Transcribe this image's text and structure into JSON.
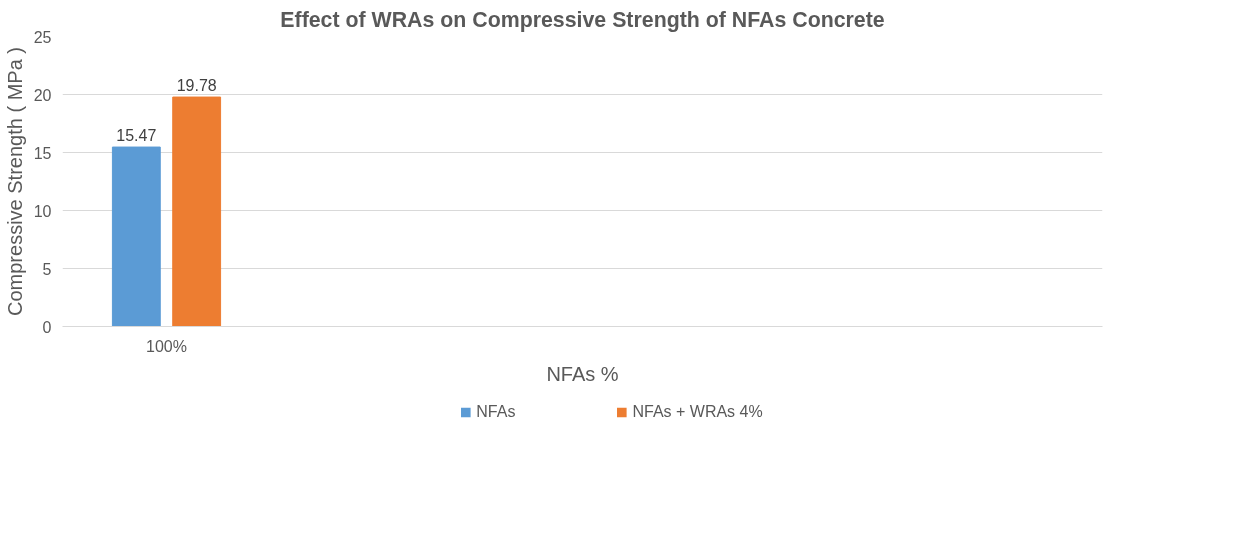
{
  "chart_data": {
    "type": "bar",
    "title": "Effect of WRAs on Compressive Strength of NFAs Concrete",
    "xlabel": "NFAs %",
    "ylabel": "Compressive Strength ( MPa )",
    "categories": [
      "100%",
      null,
      null,
      null,
      null
    ],
    "series": [
      {
        "name": "NFAs",
        "color": "#5b9bd5",
        "values": [
          15.47,
          null,
          null,
          null,
          null
        ]
      },
      {
        "name": "NFAs + WRAs 4%",
        "color": "#ed7d31",
        "values": [
          19.78,
          null,
          null,
          null,
          null
        ]
      }
    ],
    "ylim": [
      0,
      25
    ],
    "yticks": [
      0,
      5,
      10,
      15,
      20,
      25
    ],
    "grid": "y",
    "legend": "bottom",
    "data_labels": true
  }
}
